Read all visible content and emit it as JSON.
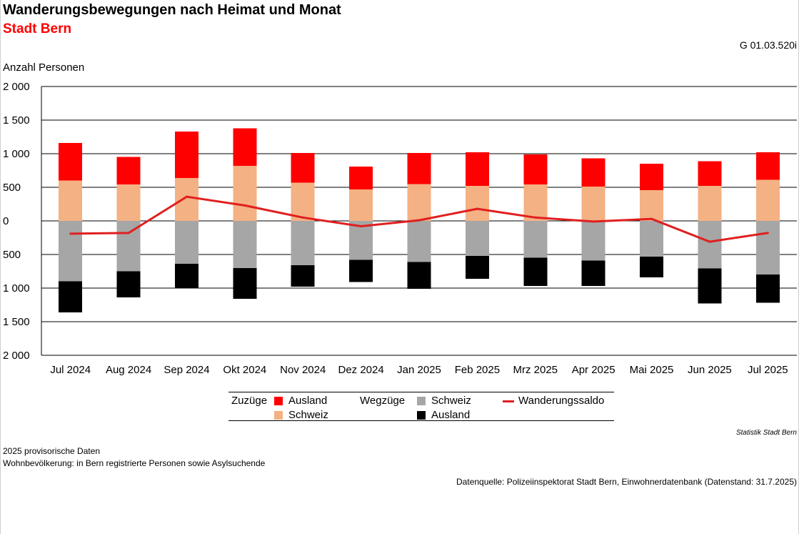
{
  "header": {
    "title": "Wanderungsbewegungen nach Heimat und Monat",
    "subtitle": "Stadt Bern",
    "code": "G 01.03.520i"
  },
  "chart_data": {
    "type": "bar",
    "stacked": true,
    "ylabel": "Anzahl Personen",
    "ylim": [
      -2000,
      2000
    ],
    "yticks": [
      2000,
      1500,
      1000,
      500,
      0,
      -500,
      -1000,
      -1500,
      -2000
    ],
    "ytick_labels": [
      "2 000",
      "1 500",
      "1 000",
      "500",
      "0",
      "500",
      "1 000",
      "1 500",
      "2 000"
    ],
    "grid": true,
    "categories": [
      "Jul 2024",
      "Aug 2024",
      "Sep 2024",
      "Okt 2024",
      "Nov 2024",
      "Dez 2024",
      "Jan 2025",
      "Feb 2025",
      "Mrz 2025",
      "Apr 2025",
      "Mai 2025",
      "Jun 2025",
      "Jul 2025"
    ],
    "series": [
      {
        "group": "Zuzüge",
        "name": "Schweiz",
        "color": "#f4b183",
        "values": [
          600,
          540,
          640,
          820,
          570,
          470,
          550,
          520,
          540,
          510,
          460,
          520,
          610
        ]
      },
      {
        "group": "Zuzüge",
        "name": "Ausland",
        "color": "#ff0000",
        "values": [
          560,
          410,
          690,
          560,
          440,
          340,
          460,
          500,
          450,
          420,
          390,
          370,
          410
        ]
      },
      {
        "group": "Wegzüge",
        "name": "Schweiz",
        "color": "#a6a6a6",
        "values": [
          -900,
          -750,
          -640,
          -700,
          -660,
          -580,
          -610,
          -520,
          -550,
          -590,
          -530,
          -710,
          -800
        ]
      },
      {
        "group": "Wegzüge",
        "name": "Ausland",
        "color": "#000000",
        "values": [
          -460,
          -390,
          -360,
          -460,
          -320,
          -330,
          -400,
          -340,
          -420,
          -380,
          -310,
          -520,
          -420
        ]
      },
      {
        "name": "Wanderungssaldo",
        "type": "line",
        "color": "#e01f1f",
        "values": [
          -190,
          -180,
          360,
          230,
          50,
          -80,
          10,
          180,
          50,
          -10,
          30,
          -310,
          -180
        ]
      }
    ],
    "legend_position": "bottom"
  },
  "legend": {
    "group_in": "Zuzüge",
    "group_out": "Wegzüge",
    "in_ausland": "Ausland",
    "in_schweiz": "Schweiz",
    "out_schweiz": "Schweiz",
    "out_ausland": "Ausland",
    "saldo": "Wanderungssaldo"
  },
  "footer": {
    "source_small": "Statistik Stadt Bern",
    "note1": "2025 provisorische Daten",
    "note2": "Wohnbevölkerung: in Bern registrierte Personen sowie Asylsuchende",
    "datasource": "Datenquelle: Polizeiinspektorat Stadt Bern, Einwohnerdatenbank (Datenstand: 31.7.2025)"
  }
}
